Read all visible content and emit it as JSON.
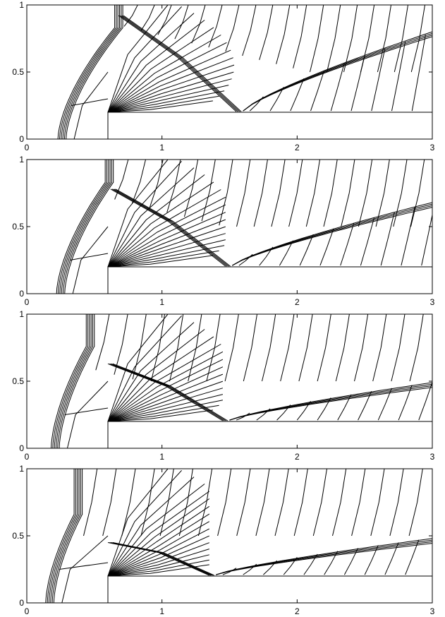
{
  "chart_data": [
    {
      "type": "contour",
      "panel": 1,
      "xlim": [
        0,
        3
      ],
      "ylim": [
        0,
        1
      ],
      "xticks": [
        "0",
        "1",
        "2",
        "3"
      ],
      "yticks": [
        "0",
        "0.5",
        "1"
      ],
      "step": {
        "x_start": 0.6,
        "height": 0.2
      },
      "bow_shock": {
        "base_x": 0.23,
        "mach_stem_x": 0.65,
        "mach_stem_y": 0.83
      },
      "reflected_shock": {
        "start": [
          0.68,
          0.92
        ],
        "reflection_x": 1.55,
        "end": [
          3.0,
          0.79
        ]
      },
      "contour_line_color": "#000000"
    },
    {
      "type": "contour",
      "panel": 2,
      "xlim": [
        0,
        3
      ],
      "ylim": [
        0,
        1
      ],
      "xticks": [
        "0",
        "1",
        "2",
        "3"
      ],
      "yticks": [
        "0",
        "0.5",
        "1"
      ],
      "step": {
        "x_start": 0.6,
        "height": 0.2
      },
      "bow_shock": {
        "base_x": 0.22,
        "mach_stem_x": 0.58,
        "mach_stem_y": 0.83
      },
      "reflected_shock": {
        "start": [
          0.62,
          0.78
        ],
        "reflection_x": 1.47,
        "end": [
          3.0,
          0.67
        ]
      },
      "contour_line_color": "#000000"
    },
    {
      "type": "contour",
      "panel": 3,
      "xlim": [
        0,
        3
      ],
      "ylim": [
        0,
        1
      ],
      "xticks": [
        "0",
        "1",
        "2",
        "3"
      ],
      "yticks": [
        "0",
        "0.5",
        "1"
      ],
      "step": {
        "x_start": 0.6,
        "height": 0.2
      },
      "bow_shock": {
        "base_x": 0.18,
        "mach_stem_x": 0.44,
        "mach_stem_y": 0.76
      },
      "reflected_shock": {
        "start": [
          0.6,
          0.63
        ],
        "reflection_x": 1.45,
        "end": [
          3.0,
          0.48
        ]
      },
      "contour_line_color": "#000000"
    },
    {
      "type": "contour",
      "panel": 4,
      "xlim": [
        0,
        3
      ],
      "ylim": [
        0,
        1
      ],
      "xticks": [
        "0",
        "1",
        "2",
        "3"
      ],
      "yticks": [
        "0",
        "0.5",
        "1"
      ],
      "step": {
        "x_start": 0.6,
        "height": 0.2
      },
      "bow_shock": {
        "base_x": 0.14,
        "mach_stem_x": 0.35,
        "mach_stem_y": 0.66
      },
      "reflected_shock": {
        "start": [
          0.6,
          0.45
        ],
        "reflection_x": 1.35,
        "end": [
          3.0,
          0.47
        ]
      },
      "contour_line_color": "#000000"
    }
  ]
}
